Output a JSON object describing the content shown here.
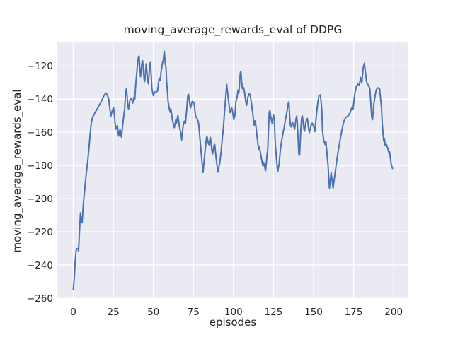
{
  "figure": {
    "title": "moving_average_rewards_eval of DDPG",
    "xlabel": "episodes",
    "ylabel": "moving_average_rewards_eval"
  },
  "chart_data": {
    "type": "line",
    "title": "moving_average_rewards_eval of DDPG",
    "xlabel": "episodes",
    "ylabel": "moving_average_rewards_eval",
    "xlim": [
      -9.95,
      209.2
    ],
    "ylim": [
      -260.4,
      -105.4
    ],
    "grid": true,
    "legend_position": "none",
    "plot_background": "#eaeaf2",
    "grid_color": "#ffffff",
    "text_color": "#262626",
    "xticks": {
      "values": [
        0,
        25,
        50,
        75,
        100,
        125,
        150,
        175,
        200
      ],
      "labels": [
        "0",
        "25",
        "50",
        "75",
        "100",
        "125",
        "150",
        "175",
        "200"
      ]
    },
    "yticks": {
      "values": [
        -120,
        -140,
        -160,
        -180,
        -200,
        -220,
        -240,
        -260
      ],
      "labels": [
        "−120",
        "−140",
        "−160",
        "−180",
        "−200",
        "−220",
        "−240",
        "−260"
      ]
    },
    "series": [
      {
        "name": "moving_average_rewards_eval",
        "color": "#4c72b0",
        "linewidth": 2,
        "points": [
          [
            0,
            -255
          ],
          [
            0.7,
            -247
          ],
          [
            1.3,
            -236
          ],
          [
            1.8,
            -231
          ],
          [
            2.2,
            -230.2
          ],
          [
            3,
            -230
          ],
          [
            3.3,
            -231.8
          ],
          [
            4,
            -217
          ],
          [
            4.5,
            -208.5
          ],
          [
            5,
            -212.5
          ],
          [
            5.5,
            -214.5
          ],
          [
            6.3,
            -203
          ],
          [
            7.2,
            -194
          ],
          [
            8,
            -186
          ],
          [
            9,
            -177.5
          ],
          [
            9.8,
            -169.5
          ],
          [
            10.6,
            -160.5
          ],
          [
            11.3,
            -154
          ],
          [
            12,
            -151
          ],
          [
            13,
            -149.3
          ],
          [
            14,
            -147.4
          ],
          [
            15.2,
            -145.5
          ],
          [
            16.3,
            -143.5
          ],
          [
            17.2,
            -142
          ],
          [
            18.1,
            -140.2
          ],
          [
            19,
            -138.2
          ],
          [
            19.9,
            -136.8
          ],
          [
            20.5,
            -136.3
          ],
          [
            21.3,
            -137.8
          ],
          [
            22.1,
            -139.5
          ],
          [
            23,
            -147.3
          ],
          [
            23.5,
            -150.2
          ],
          [
            24.4,
            -146.7
          ],
          [
            25.2,
            -145.3
          ],
          [
            26.1,
            -154.5
          ],
          [
            26.6,
            -158.1
          ],
          [
            27.5,
            -156
          ],
          [
            28.3,
            -162.3
          ],
          [
            29.2,
            -158.2
          ],
          [
            30.1,
            -163.2
          ],
          [
            31,
            -154
          ],
          [
            32.1,
            -145.6
          ],
          [
            32.7,
            -135.3
          ],
          [
            33.2,
            -133.8
          ],
          [
            34.1,
            -144.5
          ],
          [
            34.5,
            -146
          ],
          [
            35.4,
            -140.4
          ],
          [
            36.3,
            -139.4
          ],
          [
            37.1,
            -142.4
          ],
          [
            37.9,
            -138.9
          ],
          [
            38.4,
            -140.3
          ],
          [
            39,
            -131
          ],
          [
            39.8,
            -122.2
          ],
          [
            40.7,
            -114.4
          ],
          [
            41.1,
            -114
          ],
          [
            41.5,
            -120.7
          ],
          [
            42,
            -126.5
          ],
          [
            42.9,
            -118
          ],
          [
            43.3,
            -116.9
          ],
          [
            44.2,
            -128.1
          ],
          [
            44.6,
            -129.4
          ],
          [
            45.5,
            -118.7
          ],
          [
            46.4,
            -128.7
          ],
          [
            46.9,
            -130.8
          ],
          [
            47.7,
            -118.7
          ],
          [
            48.2,
            -117.9
          ],
          [
            49.1,
            -133.7
          ],
          [
            50,
            -137.9
          ],
          [
            50.8,
            -135.8
          ],
          [
            51.7,
            -135.8
          ],
          [
            52.6,
            -135.1
          ],
          [
            53.5,
            -128
          ],
          [
            53.9,
            -127.3
          ],
          [
            54.4,
            -128.7
          ],
          [
            54.8,
            -123.7
          ],
          [
            55.7,
            -118
          ],
          [
            56.1,
            -117.2
          ],
          [
            56.8,
            -111.1
          ],
          [
            57.4,
            -118
          ],
          [
            57.9,
            -121.5
          ],
          [
            58.3,
            -130.1
          ],
          [
            58.8,
            -135.8
          ],
          [
            59.2,
            -141.5
          ],
          [
            60.1,
            -146.5
          ],
          [
            60.5,
            -148
          ],
          [
            60.9,
            -145.8
          ],
          [
            61.8,
            -152.2
          ],
          [
            62.7,
            -155.8
          ],
          [
            63.1,
            -157.2
          ],
          [
            64,
            -152.2
          ],
          [
            64.4,
            -154.4
          ],
          [
            65.3,
            -149.9
          ],
          [
            65.7,
            -152.5
          ],
          [
            66.4,
            -157.5
          ],
          [
            67.2,
            -160.6
          ],
          [
            67.7,
            -164.6
          ],
          [
            68.5,
            -156.3
          ],
          [
            69.3,
            -153.3
          ],
          [
            70,
            -154.6
          ],
          [
            70.8,
            -146.3
          ],
          [
            71.5,
            -138
          ],
          [
            71.9,
            -137.1
          ],
          [
            72.6,
            -142
          ],
          [
            73.2,
            -145.3
          ],
          [
            74,
            -142
          ],
          [
            74.5,
            -141.3
          ],
          [
            75.4,
            -142.3
          ],
          [
            76.3,
            -150.1
          ],
          [
            77.2,
            -151.7
          ],
          [
            78.1,
            -153.7
          ],
          [
            78.5,
            -157.3
          ],
          [
            79.4,
            -167.3
          ],
          [
            80.3,
            -177.3
          ],
          [
            81,
            -184.2
          ],
          [
            82.1,
            -173.1
          ],
          [
            83,
            -164.4
          ],
          [
            83.4,
            -162.3
          ],
          [
            84.3,
            -166.6
          ],
          [
            84.7,
            -167.4
          ],
          [
            85.6,
            -163.1
          ],
          [
            86.5,
            -170.9
          ],
          [
            86.9,
            -173.1
          ],
          [
            87.8,
            -168.1
          ],
          [
            88.3,
            -167.3
          ],
          [
            89.2,
            -175.9
          ],
          [
            90.3,
            -184
          ],
          [
            91.4,
            -178.7
          ],
          [
            92.3,
            -171.6
          ],
          [
            93.1,
            -163
          ],
          [
            93.7,
            -157.3
          ],
          [
            94.5,
            -146.7
          ],
          [
            95.4,
            -135.9
          ],
          [
            95.8,
            -131.1
          ],
          [
            96.7,
            -139.5
          ],
          [
            97.6,
            -146
          ],
          [
            98,
            -148.1
          ],
          [
            98.9,
            -145.3
          ],
          [
            99.3,
            -146.7
          ],
          [
            100.2,
            -152.4
          ],
          [
            101,
            -149.5
          ],
          [
            101.5,
            -141.6
          ],
          [
            102.1,
            -139.5
          ],
          [
            102.9,
            -134.5
          ],
          [
            103.4,
            -136.3
          ],
          [
            104.2,
            -124.6
          ],
          [
            104.6,
            -123.1
          ],
          [
            105.1,
            -129.5
          ],
          [
            105.6,
            -133.7
          ],
          [
            106.4,
            -133.1
          ],
          [
            106.9,
            -136
          ],
          [
            107.7,
            -141.7
          ],
          [
            108.2,
            -143.8
          ],
          [
            109,
            -138.8
          ],
          [
            109.9,
            -136.6
          ],
          [
            110.4,
            -137.4
          ],
          [
            111.2,
            -142.4
          ],
          [
            112.1,
            -148.8
          ],
          [
            112.6,
            -153.7
          ],
          [
            113,
            -155.9
          ],
          [
            113.4,
            -153.1
          ],
          [
            113.9,
            -155.2
          ],
          [
            114.8,
            -163.1
          ],
          [
            115.7,
            -170.2
          ],
          [
            116.1,
            -168.8
          ],
          [
            117,
            -173
          ],
          [
            117.5,
            -176
          ],
          [
            118.3,
            -180.2
          ],
          [
            118.8,
            -178.1
          ],
          [
            119.7,
            -181.7
          ],
          [
            120.1,
            -183.1
          ],
          [
            121,
            -173.1
          ],
          [
            121.4,
            -170.2
          ],
          [
            122.3,
            -148.1
          ],
          [
            122.7,
            -146.7
          ],
          [
            123.2,
            -150.2
          ],
          [
            124.1,
            -154.5
          ],
          [
            124.9,
            -149.5
          ],
          [
            125.4,
            -150.6
          ],
          [
            126.2,
            -168
          ],
          [
            127,
            -178
          ],
          [
            127.6,
            -183.8
          ],
          [
            128.5,
            -178.8
          ],
          [
            129.3,
            -170.2
          ],
          [
            130.2,
            -164.5
          ],
          [
            131.1,
            -159.5
          ],
          [
            131.5,
            -158.1
          ],
          [
            132.4,
            -152.4
          ],
          [
            133.3,
            -148.1
          ],
          [
            134.2,
            -142.4
          ],
          [
            134.6,
            -141.7
          ],
          [
            135.1,
            -151
          ],
          [
            135.5,
            -155.3
          ],
          [
            135.9,
            -156.7
          ],
          [
            136.8,
            -153.8
          ],
          [
            137.3,
            -155.3
          ],
          [
            138.2,
            -158.1
          ],
          [
            139.1,
            -151.7
          ],
          [
            139.5,
            -150.2
          ],
          [
            139.9,
            -155.3
          ],
          [
            140.8,
            -173.1
          ],
          [
            141.3,
            -173.8
          ],
          [
            142.1,
            -157.4
          ],
          [
            142.6,
            -151
          ],
          [
            143,
            -150.2
          ],
          [
            143.9,
            -157.4
          ],
          [
            144.3,
            -159.5
          ],
          [
            145.2,
            -153.8
          ],
          [
            146.1,
            -151.7
          ],
          [
            147,
            -158.1
          ],
          [
            147.4,
            -160.2
          ],
          [
            148.3,
            -156.1
          ],
          [
            149.2,
            -154.5
          ],
          [
            150.1,
            -156.6
          ],
          [
            150.8,
            -159.6
          ],
          [
            151.7,
            -150.1
          ],
          [
            152.5,
            -143.1
          ],
          [
            153.3,
            -138.2
          ],
          [
            154.3,
            -137.4
          ],
          [
            155.1,
            -146
          ],
          [
            155.6,
            -159.5
          ],
          [
            156.4,
            -165.3
          ],
          [
            157.3,
            -167.4
          ],
          [
            157.7,
            -165.3
          ],
          [
            159,
            -179.5
          ],
          [
            159.9,
            -193.6
          ],
          [
            161,
            -184.5
          ],
          [
            162.2,
            -193.6
          ],
          [
            163.4,
            -185.1
          ],
          [
            164.4,
            -177.6
          ],
          [
            165.4,
            -171.1
          ],
          [
            166.4,
            -165.6
          ],
          [
            167.5,
            -159.6
          ],
          [
            168.8,
            -153.6
          ],
          [
            170,
            -151.1
          ],
          [
            171.5,
            -150.3
          ],
          [
            172.8,
            -148.3
          ],
          [
            173.8,
            -145.3
          ],
          [
            174.6,
            -146.3
          ],
          [
            175.6,
            -137.6
          ],
          [
            176.6,
            -132.6
          ],
          [
            177.6,
            -130.9
          ],
          [
            178.6,
            -131.6
          ],
          [
            179.3,
            -126.9
          ],
          [
            180.1,
            -130.3
          ],
          [
            181,
            -121.1
          ],
          [
            181.7,
            -118.3
          ],
          [
            182.7,
            -126.6
          ],
          [
            183.2,
            -130.1
          ],
          [
            184.2,
            -131.6
          ],
          [
            185.1,
            -133.6
          ],
          [
            186.3,
            -150.9
          ],
          [
            186.8,
            -152.4
          ],
          [
            187.6,
            -143.1
          ],
          [
            188.4,
            -138.1
          ],
          [
            189.1,
            -134.5
          ],
          [
            190.1,
            -133.2
          ],
          [
            191.2,
            -133.8
          ],
          [
            192.4,
            -145.3
          ],
          [
            192.9,
            -155.2
          ],
          [
            193.8,
            -165.3
          ],
          [
            194.2,
            -163.8
          ],
          [
            194.7,
            -168.1
          ],
          [
            195.5,
            -167.4
          ],
          [
            196.3,
            -169.6
          ],
          [
            197,
            -172.4
          ],
          [
            197.4,
            -171.7
          ],
          [
            198.5,
            -179.5
          ],
          [
            199.3,
            -181.8
          ]
        ]
      }
    ]
  }
}
